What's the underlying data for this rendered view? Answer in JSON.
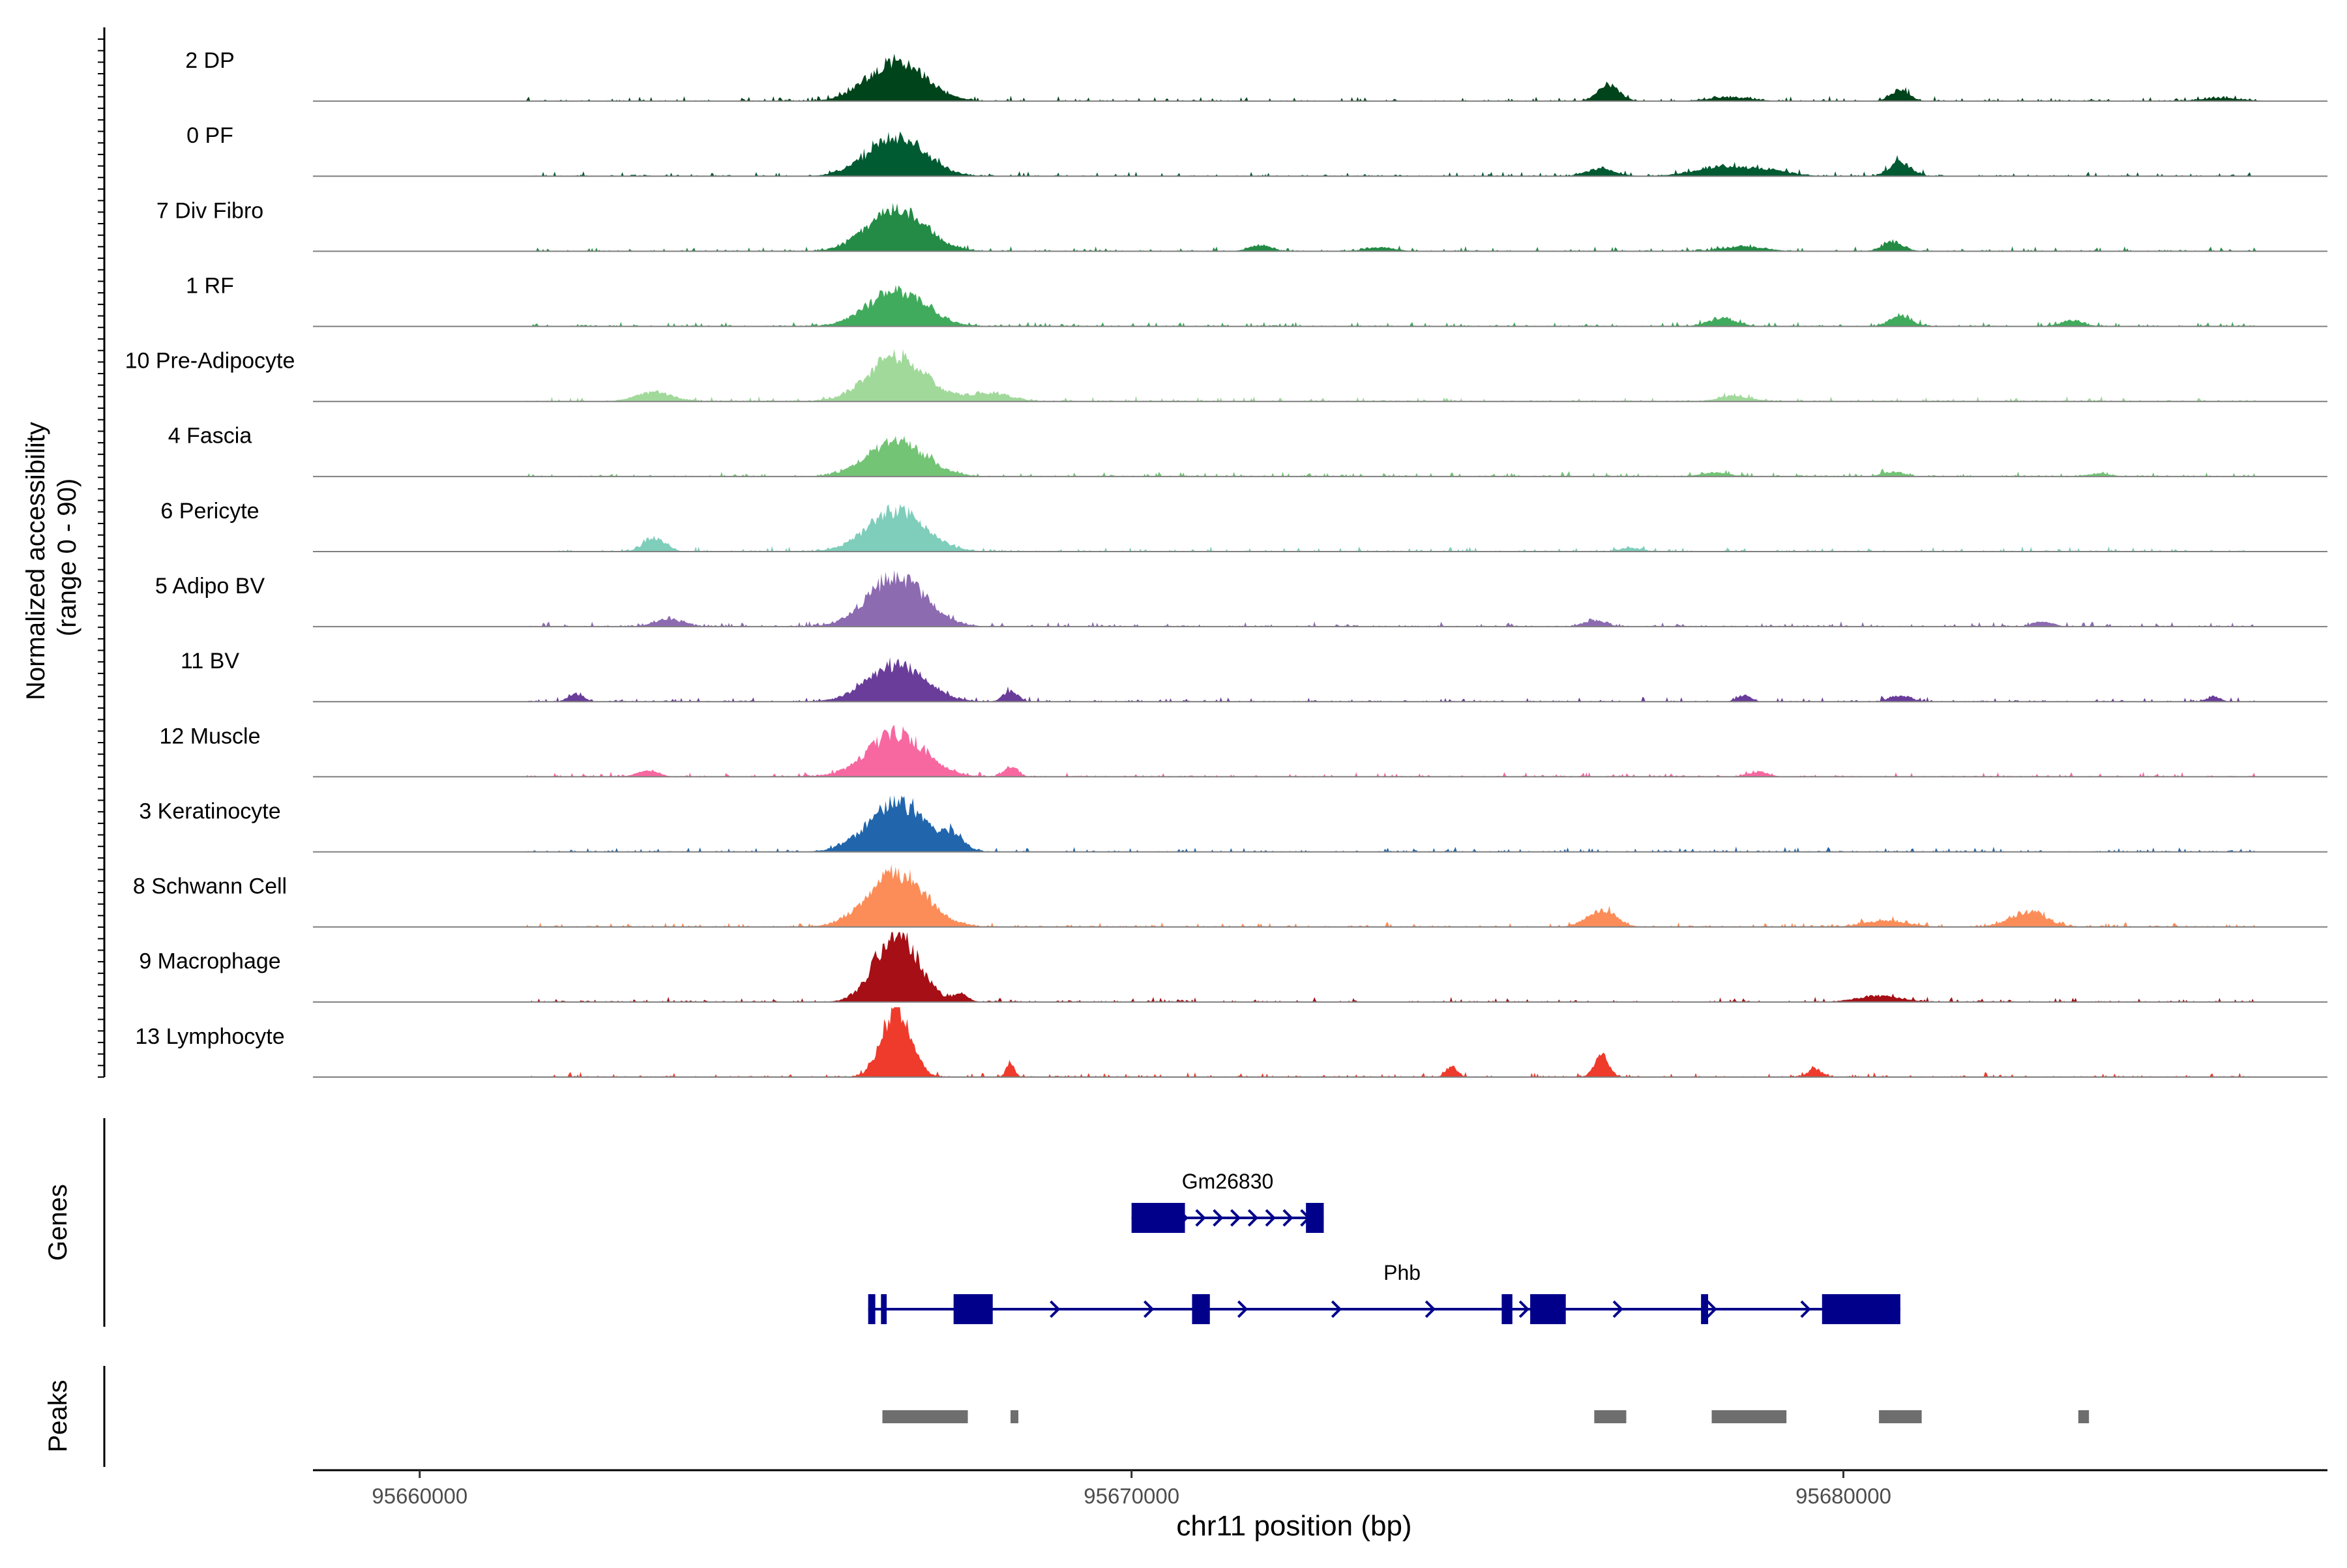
{
  "chart_data": {
    "type": "area",
    "chromosome": "chr11",
    "xlabel": "chr11 position (bp)",
    "xlim": [
      95658500,
      95686800
    ],
    "x_ticks": [
      95660000,
      95670000,
      95680000
    ],
    "x_tick_labels": [
      "95660000",
      "95670000",
      "95680000"
    ],
    "coverage": {
      "ylabel_line1": "Normalized accessibility",
      "ylabel_line2": "(range 0 - 90)",
      "ylim": [
        0,
        90
      ],
      "tracks": [
        {
          "name": "2 DP",
          "color": "#00441b",
          "profile": "dp",
          "peaks": [
            [
              95666700,
              400,
              52
            ],
            [
              95676700,
              150,
              22
            ],
            [
              95680800,
              130,
              14
            ],
            [
              95678400,
              300,
              5
            ],
            [
              95685300,
              300,
              4
            ]
          ]
        },
        {
          "name": "0 PF",
          "color": "#005a32",
          "profile": "pf",
          "peaks": [
            [
              95666700,
              400,
              50
            ],
            [
              95676600,
              200,
              10
            ],
            [
              95678300,
              400,
              12
            ],
            [
              95680800,
              150,
              18
            ],
            [
              95679000,
              300,
              6
            ]
          ]
        },
        {
          "name": "7 Div Fibro",
          "color": "#238b45",
          "profile": "divfibro",
          "peaks": [
            [
              95666700,
              400,
              55
            ],
            [
              95671800,
              150,
              8
            ],
            [
              95680700,
              150,
              12
            ],
            [
              95678600,
              300,
              6
            ],
            [
              95673500,
              200,
              5
            ]
          ]
        },
        {
          "name": "1 RF",
          "color": "#41ab5d",
          "profile": "rf",
          "peaks": [
            [
              95666700,
              400,
              45
            ],
            [
              95678300,
              200,
              10
            ],
            [
              95680800,
              150,
              14
            ],
            [
              95683200,
              150,
              8
            ]
          ]
        },
        {
          "name": "10 Pre-Adipocyte",
          "color": "#a1d99b",
          "profile": "preadipo",
          "peaks": [
            [
              95666700,
              400,
              58
            ],
            [
              95663300,
              250,
              12
            ],
            [
              95668000,
              300,
              10
            ],
            [
              95678500,
              250,
              6
            ]
          ]
        },
        {
          "name": "4 Fascia",
          "color": "#74c476",
          "profile": "fascia",
          "peaks": [
            [
              95666700,
              400,
              46
            ],
            [
              95678200,
              200,
              5
            ],
            [
              95680700,
              150,
              6
            ],
            [
              95683600,
              150,
              4
            ]
          ]
        },
        {
          "name": "6 Pericyte",
          "color": "#7fcdbb",
          "profile": "pericyte",
          "peaks": [
            [
              95666700,
              400,
              52
            ],
            [
              95663300,
              150,
              18
            ],
            [
              95677000,
              150,
              5
            ]
          ]
        },
        {
          "name": "5 Adipo BV",
          "color": "#8c6bb1",
          "profile": "adipobv",
          "peaks": [
            [
              95666700,
              400,
              64
            ],
            [
              95663500,
              200,
              10
            ],
            [
              95676500,
              150,
              8
            ],
            [
              95682800,
              150,
              6
            ]
          ]
        },
        {
          "name": "11 BV",
          "color": "#6a3d9a",
          "profile": "bv",
          "peaks": [
            [
              95666700,
              400,
              48
            ],
            [
              95668300,
              100,
              14
            ],
            [
              95662200,
              100,
              10
            ],
            [
              95678600,
              100,
              8
            ],
            [
              95680800,
              150,
              8
            ],
            [
              95685200,
              100,
              6
            ]
          ]
        },
        {
          "name": "12 Muscle",
          "color": "#f768a1",
          "profile": "muscle",
          "peaks": [
            [
              95666700,
              400,
              56
            ],
            [
              95668300,
              100,
              12
            ],
            [
              95663200,
              150,
              8
            ],
            [
              95678800,
              150,
              6
            ]
          ]
        },
        {
          "name": "3 Keratinocyte",
          "color": "#2166ac",
          "profile": "kerat",
          "peaks": [
            [
              95666700,
              400,
              62
            ],
            [
              95667500,
              150,
              16
            ]
          ]
        },
        {
          "name": "8 Schwann Cell",
          "color": "#fc8d59",
          "profile": "schwann",
          "peaks": [
            [
              95666700,
              400,
              70
            ],
            [
              95676600,
              200,
              22
            ],
            [
              95682600,
              250,
              20
            ],
            [
              95680600,
              300,
              8
            ]
          ]
        },
        {
          "name": "9 Macrophage",
          "color": "#a50f15",
          "profile": "macro",
          "peaks": [
            [
              95666700,
              300,
              90
            ],
            [
              95667600,
              100,
              10
            ],
            [
              95680500,
              300,
              8
            ]
          ]
        },
        {
          "name": "13 Lymphocyte",
          "color": "#ef3b2c",
          "profile": "lympho",
          "peaks": [
            [
              95666700,
              200,
              88
            ],
            [
              95676600,
              100,
              28
            ],
            [
              95674500,
              80,
              14
            ],
            [
              95668300,
              60,
              16
            ],
            [
              95679600,
              100,
              10
            ]
          ]
        }
      ]
    },
    "genes": {
      "label": "Genes",
      "color": "#00008b",
      "items": [
        {
          "name": "Gm26830",
          "start": 95670000,
          "end": 95672700,
          "strand": "+",
          "row": 0,
          "exons": [
            [
              95670000,
              95670750
            ],
            [
              95672450,
              95672700
            ]
          ]
        },
        {
          "name": "Phb",
          "start": 95666300,
          "end": 95680800,
          "strand": "+",
          "row": 1,
          "exons": [
            [
              95666300,
              95666400
            ],
            [
              95666480,
              95666560
            ],
            [
              95667500,
              95668050
            ],
            [
              95670850,
              95671100
            ],
            [
              95675200,
              95675350
            ],
            [
              95675600,
              95676100
            ],
            [
              95678000,
              95678100
            ],
            [
              95679700,
              95680800
            ]
          ]
        }
      ]
    },
    "peaks": {
      "label": "Peaks",
      "color": "#6e6e6e",
      "regions": [
        [
          95666500,
          95667700
        ],
        [
          95668300,
          95668400
        ],
        [
          95676500,
          95676950
        ],
        [
          95678150,
          95679200
        ],
        [
          95680500,
          95681100
        ],
        [
          95683300,
          95683450
        ]
      ]
    }
  }
}
